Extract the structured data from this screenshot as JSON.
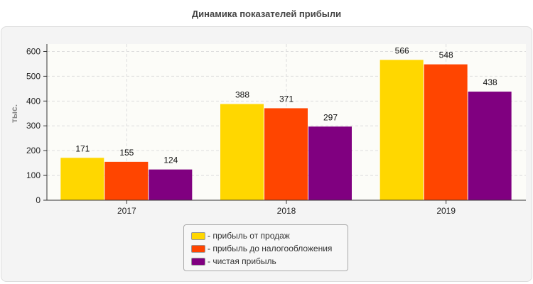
{
  "chart_data": {
    "type": "bar",
    "title": "Динамика показателей прибыли",
    "ylabel": "тыс.",
    "xlabel": "",
    "categories": [
      "2017",
      "2018",
      "2019"
    ],
    "series": [
      {
        "name": "- прибыль от продаж",
        "values": [
          171,
          388,
          566
        ],
        "color": "#FFD700"
      },
      {
        "name": "- прибыль до налогообложения",
        "values": [
          155,
          371,
          548
        ],
        "color": "#FF4500"
      },
      {
        "name": "- чистая прибыль",
        "values": [
          124,
          297,
          438
        ],
        "color": "#800080"
      }
    ],
    "ylim": [
      0,
      630
    ],
    "yticks": [
      0,
      100,
      200,
      300,
      400,
      500,
      600
    ],
    "grid": true,
    "legend": "bottom"
  }
}
